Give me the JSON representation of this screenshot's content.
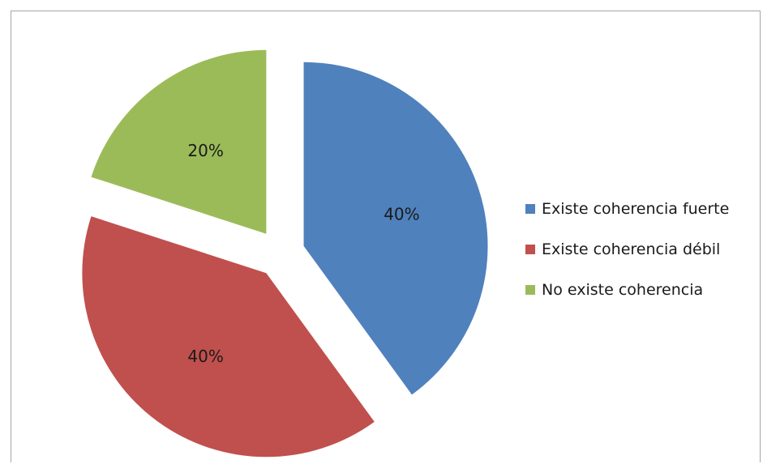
{
  "chart_data": {
    "type": "pie",
    "title": "",
    "exploded": true,
    "legend_position": "right",
    "slices": [
      {
        "name": "Existe coherencia fuerte",
        "value": 40,
        "label": "40%",
        "color": "#4f81bd"
      },
      {
        "name": "Existe coherencia débil",
        "value": 40,
        "label": "40%",
        "color": "#c0504d"
      },
      {
        "name": "No existe coherencia",
        "value": 20,
        "label": "20%",
        "color": "#9bbb59"
      }
    ]
  }
}
